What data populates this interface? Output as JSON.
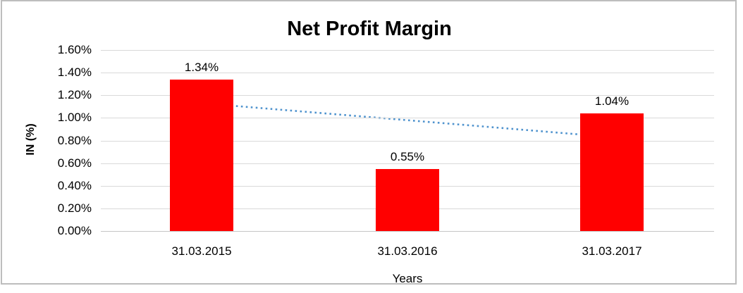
{
  "chart_data": {
    "type": "bar",
    "title": "Net Profit Margin",
    "xlabel": "Years",
    "ylabel": "IN (%)",
    "categories": [
      "31.03.2015",
      "31.03.2016",
      "31.03.2017"
    ],
    "values": [
      1.34,
      0.55,
      1.04
    ],
    "value_labels": [
      "1.34%",
      "0.55%",
      "1.04%"
    ],
    "ylim": [
      0,
      1.6
    ],
    "ytick_step": 0.2,
    "ytick_labels": [
      "0.00%",
      "0.20%",
      "0.40%",
      "0.60%",
      "0.80%",
      "1.00%",
      "1.20%",
      "1.40%",
      "1.60%"
    ],
    "bar_color": "#FF0000",
    "gridlines": true,
    "legend": false,
    "trendline": {
      "type": "linear",
      "style": "dotted",
      "color": "#4F93CE",
      "start_value": 1.13,
      "end_value": 0.83,
      "start_category_index": 0,
      "end_category_index": 2
    }
  }
}
